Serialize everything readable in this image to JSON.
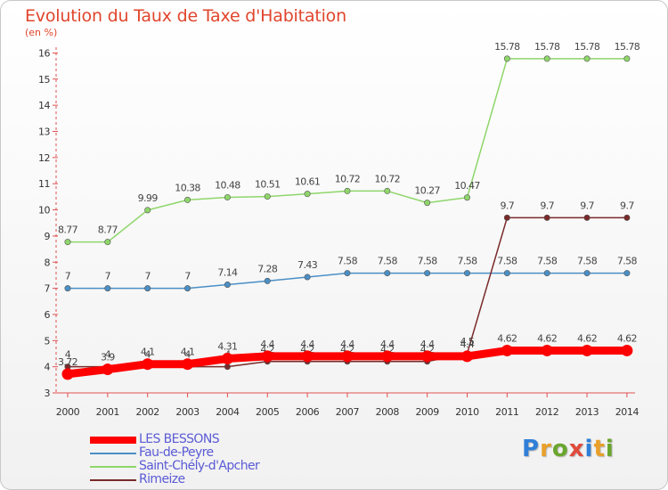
{
  "header": {
    "title": "Evolution du Taux de Taxe d'Habitation",
    "unit": "(en %)"
  },
  "logo": {
    "text": "Proxiti",
    "colors": [
      "#2f7fd8",
      "#e8a02a",
      "#6aa62e",
      "#e04a3b"
    ]
  },
  "chart_data": {
    "type": "line",
    "x": [
      "2000",
      "2001",
      "2002",
      "2003",
      "2004",
      "2005",
      "2006",
      "2007",
      "2008",
      "2009",
      "2010",
      "2011",
      "2012",
      "2013",
      "2014"
    ],
    "y_ticks": [
      "3",
      "4",
      "5",
      "6",
      "7",
      "8",
      "9",
      "10",
      "11",
      "12",
      "13",
      "14",
      "15",
      "16"
    ],
    "ylim": [
      3,
      16
    ],
    "grid": false,
    "legend_position": "bottom-left",
    "series": [
      {
        "name": "LES BESSONS",
        "color": "#ff0000",
        "emphasis": true,
        "values": [
          3.72,
          3.9,
          4.1,
          4.1,
          4.31,
          4.4,
          4.4,
          4.4,
          4.4,
          4.4,
          4.4,
          4.62,
          4.62,
          4.62,
          4.62
        ],
        "labels": [
          "3.72",
          "3.9",
          "4.1",
          "4.1",
          "4.31",
          "4.4",
          "4.4",
          "4.4",
          "4.4",
          "4.4",
          "4.4",
          "4.62",
          "4.62",
          "4.62",
          "4.62"
        ]
      },
      {
        "name": "Fau-de-Peyre",
        "color": "#4a8fc6",
        "values": [
          7,
          7,
          7,
          7,
          7.14,
          7.28,
          7.43,
          7.58,
          7.58,
          7.58,
          7.58,
          7.58,
          7.58,
          7.58,
          7.58
        ],
        "labels": [
          "7",
          "7",
          "7",
          "7",
          "7.14",
          "7.28",
          "7.43",
          "7.58",
          "7.58",
          "7.58",
          "7.58",
          "7.58",
          "7.58",
          "7.58",
          "7.58"
        ]
      },
      {
        "name": "Saint-Chély-d'Apcher",
        "color": "#8fd66a",
        "values": [
          8.77,
          8.77,
          9.99,
          10.38,
          10.48,
          10.51,
          10.61,
          10.72,
          10.72,
          10.27,
          10.47,
          15.78,
          15.78,
          15.78,
          15.78
        ],
        "labels": [
          "8.77",
          "8.77",
          "9.99",
          "10.38",
          "10.48",
          "10.51",
          "10.61",
          "10.72",
          "10.72",
          "10.27",
          "10.47",
          "15.78",
          "15.78",
          "15.78",
          "15.78"
        ]
      },
      {
        "name": "Rimeize",
        "color": "#7a2a2a",
        "values": [
          4,
          4,
          4,
          4,
          4,
          4.2,
          4.2,
          4.2,
          4.2,
          4.2,
          4.5,
          9.7,
          9.7,
          9.7,
          9.7
        ],
        "labels": [
          "4",
          "4",
          "4",
          "4",
          "4",
          "4.2",
          "4.2",
          "4.2",
          "4.2",
          "4.2",
          "4.5",
          "9.7",
          "9.7",
          "9.7",
          "9.7"
        ]
      }
    ]
  }
}
